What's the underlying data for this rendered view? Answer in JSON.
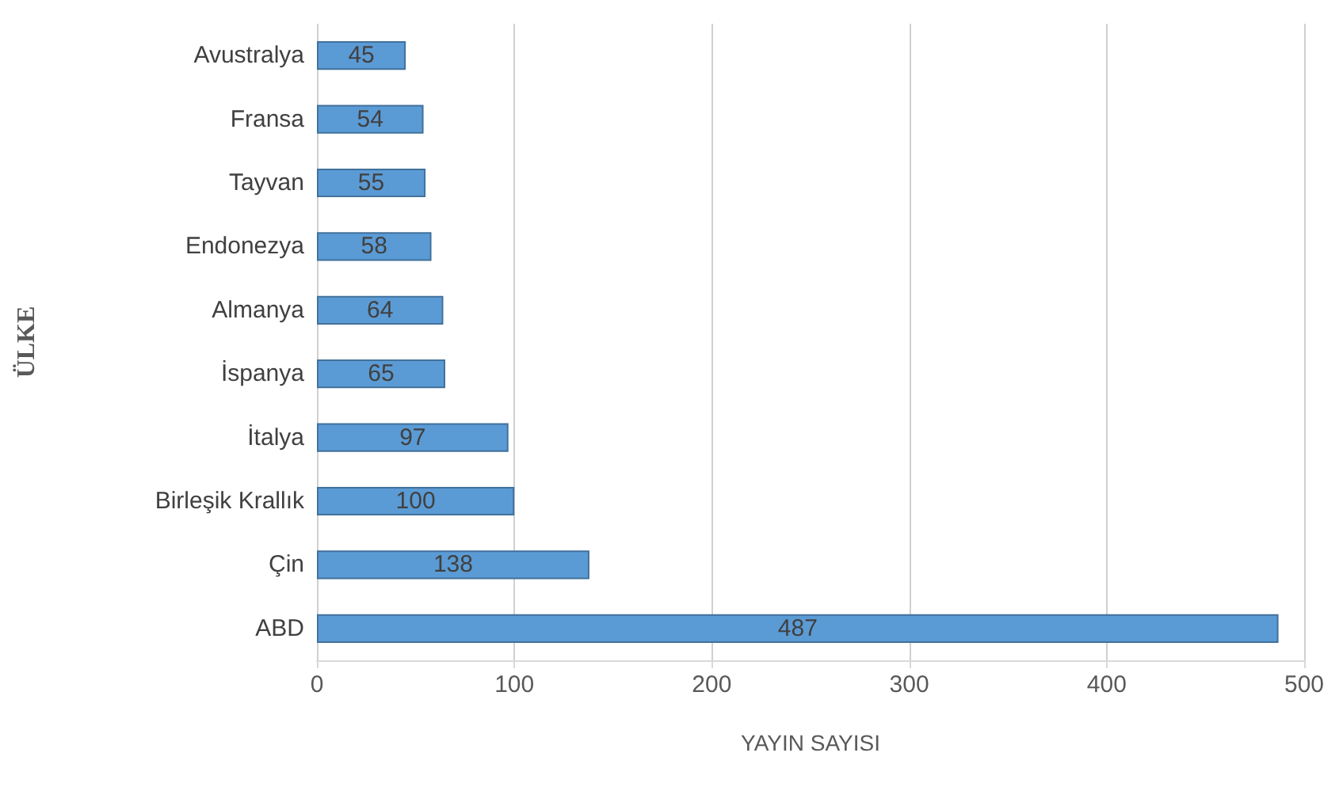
{
  "chart_data": {
    "type": "bar",
    "orientation": "horizontal",
    "xlabel": "YAYIN SAYISI",
    "ylabel": "ÜLKE",
    "categories": [
      "Avustralya",
      "Fransa",
      "Tayvan",
      "Endonezya",
      "Almanya",
      "İspanya",
      "İtalya",
      "Birleşik Krallık",
      "Çin",
      "ABD"
    ],
    "values": [
      45,
      54,
      55,
      58,
      64,
      65,
      97,
      100,
      138,
      487
    ],
    "color": "#5b9bd5",
    "data_labels": true,
    "xlim": [
      0,
      500
    ],
    "xticks": [
      0,
      100,
      200,
      300,
      400,
      500
    ],
    "grid": "x"
  }
}
